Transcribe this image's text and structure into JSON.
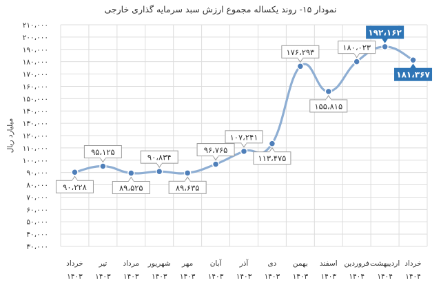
{
  "chart_data": {
    "type": "line",
    "title": "نمودار ۱۵- روند یکساله مجموع ارزش سبد سرمایه گذاری خارجی",
    "ylabel": "میلیارد ریال",
    "xlabel": "",
    "ylim": [
      30000,
      210000
    ],
    "yticks": [
      30000,
      40000,
      50000,
      60000,
      70000,
      80000,
      90000,
      100000,
      110000,
      120000,
      130000,
      140000,
      150000,
      160000,
      170000,
      180000,
      190000,
      200000,
      210000
    ],
    "ytick_labels": [
      "۳۰،۰۰۰",
      "۴۰،۰۰۰",
      "۵۰،۰۰۰",
      "۶۰،۰۰۰",
      "۷۰،۰۰۰",
      "۸۰،۰۰۰",
      "۹۰،۰۰۰",
      "۱۰۰،۰۰۰",
      "۱۱۰،۰۰۰",
      "۱۲۰،۰۰۰",
      "۱۳۰،۰۰۰",
      "۱۴۰،۰۰۰",
      "۱۵۰،۰۰۰",
      "۱۶۰،۰۰۰",
      "۱۷۰،۰۰۰",
      "۱۸۰،۰۰۰",
      "۱۹۰،۰۰۰",
      "۲۰۰،۰۰۰",
      "۲۱۰،۰۰۰"
    ],
    "categories": [
      {
        "month": "خرداد",
        "year": "۱۴۰۳"
      },
      {
        "month": "تیر",
        "year": "۱۴۰۳"
      },
      {
        "month": "مرداد",
        "year": "۱۴۰۳"
      },
      {
        "month": "شهریور",
        "year": "۱۴۰۳"
      },
      {
        "month": "مهر",
        "year": "۱۴۰۳"
      },
      {
        "month": "آبان",
        "year": "۱۴۰۳"
      },
      {
        "month": "آذر",
        "year": "۱۴۰۳"
      },
      {
        "month": "دی",
        "year": "۱۴۰۳"
      },
      {
        "month": "بهمن",
        "year": "۱۴۰۳"
      },
      {
        "month": "اسفند",
        "year": "۱۴۰۳"
      },
      {
        "month": "فروردین",
        "year": "۱۴۰۴"
      },
      {
        "month": "اردیبهشت",
        "year": "۱۴۰۴"
      },
      {
        "month": "خرداد",
        "year": "۱۴۰۴"
      }
    ],
    "values": [
      90228,
      95125,
      89525,
      90834,
      89635,
      96765,
      107241,
      113475,
      176293,
      155815,
      180023,
      192162,
      181367
    ],
    "value_labels": [
      "۹۰،۲۲۸",
      "۹۵،۱۲۵",
      "۸۹،۵۲۵",
      "۹۰،۸۳۴",
      "۸۹،۶۳۵",
      "۹۶،۷۶۵",
      "۱۰۷،۲۴۱",
      "۱۱۳،۴۷۵",
      "۱۷۶،۲۹۳",
      "۱۵۵،۸۱۵",
      "۱۸۰،۰۲۳",
      "۱۹۲،۱۶۲",
      "۱۸۱،۳۶۷"
    ],
    "label_position": [
      "below",
      "above",
      "below",
      "above",
      "below",
      "above",
      "above",
      "below",
      "above",
      "below",
      "above",
      "above",
      "below"
    ],
    "highlighted": [
      false,
      false,
      false,
      false,
      false,
      false,
      false,
      false,
      false,
      false,
      false,
      true,
      true
    ],
    "grid": true,
    "colors": {
      "line": "#8eaed3",
      "marker_fill": "#4f7fb9",
      "marker_stroke": "#ffffff",
      "label_border": "#9a9a9a",
      "highlight_fill": "#2e75b6",
      "highlight_text": "#ffffff",
      "grid": "#dcdcdc",
      "text": "#333333"
    }
  }
}
